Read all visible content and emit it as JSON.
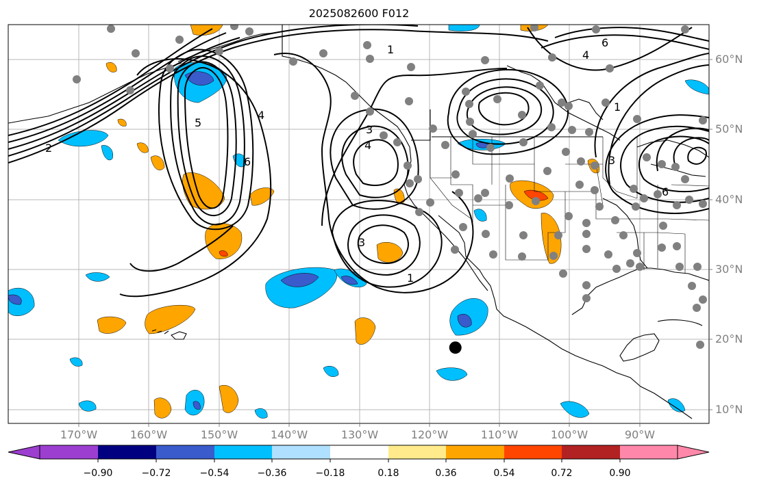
{
  "title": "2025082600 F012",
  "map": {
    "projection": "PlateCarree",
    "lon_range": [
      -180,
      -80
    ],
    "lat_range": [
      8,
      65
    ],
    "lon_labels": [
      "170°W",
      "160°W",
      "150°W",
      "140°W",
      "130°W",
      "120°W",
      "110°W",
      "100°W",
      "90°W"
    ],
    "lat_labels": [
      "60°N",
      "50°N",
      "40°N",
      "30°N",
      "20°N",
      "10°N"
    ],
    "contour_labels": [
      "1",
      "1",
      "1",
      "2",
      "3",
      "3",
      "3",
      "4",
      "4",
      "4",
      "5",
      "6",
      "6",
      "6"
    ],
    "marker": {
      "name": "storm-center-marker",
      "lon": -116.3,
      "lat": 18.8
    }
  },
  "colorbar": {
    "ticks": [
      "−0.90",
      "−0.72",
      "−0.54",
      "−0.36",
      "−0.18",
      "0.18",
      "0.36",
      "0.54",
      "0.72",
      "0.90"
    ],
    "colors": [
      "#9c3ed0",
      "#000080",
      "#3a5bcc",
      "#00bfff",
      "#b0e0ff",
      "#ffffff",
      "#ffeb8c",
      "#ffa500",
      "#ff4500",
      "#b22222",
      "#ff88aa"
    ]
  }
}
